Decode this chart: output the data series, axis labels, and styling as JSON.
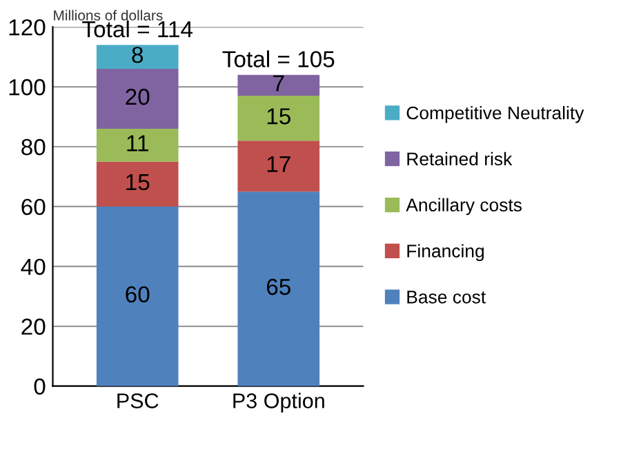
{
  "chart_data": {
    "type": "bar",
    "stacked": true,
    "ylabel": "Millions of dollars",
    "categories": [
      "PSC",
      "P3 Option"
    ],
    "series": [
      {
        "name": "Base cost",
        "color": "#4f81bd",
        "values": [
          60,
          65
        ]
      },
      {
        "name": "Financing",
        "color": "#c0504d",
        "values": [
          15,
          17
        ]
      },
      {
        "name": "Ancillary costs",
        "color": "#9bbb59",
        "values": [
          11,
          15
        ]
      },
      {
        "name": "Retained risk",
        "color": "#8064a2",
        "values": [
          20,
          7
        ]
      },
      {
        "name": "Competitive Neutrality",
        "color": "#4bacc6",
        "values": [
          8,
          null
        ]
      }
    ],
    "totals": [
      "Total = 114",
      "Total = 105"
    ],
    "data_labels": true,
    "ylim": [
      0,
      120
    ],
    "yticks": [
      0,
      20,
      40,
      60,
      80,
      100,
      120
    ],
    "grid": "y",
    "legend": "right"
  }
}
